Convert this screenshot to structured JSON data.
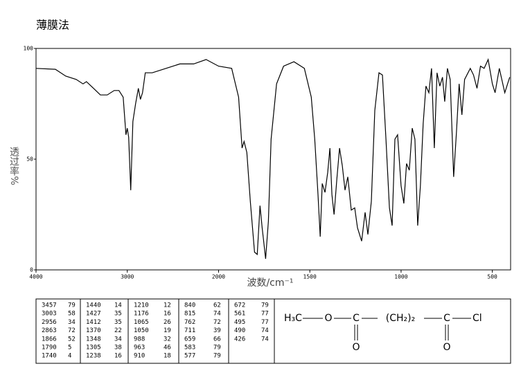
{
  "chart_data": {
    "type": "line",
    "title": "薄膜法",
    "x_label": "波数/cm⁻¹",
    "y_label": "透过率%",
    "xlim": [
      4000,
      400
    ],
    "xticks": [
      4000,
      3000,
      2000,
      1500,
      1000,
      500
    ],
    "ylim": [
      0,
      100
    ],
    "yticks": [
      0,
      50,
      100
    ],
    "color": "#000000",
    "x": [
      4000,
      3788,
      3674,
      3560,
      3485,
      3447,
      3371,
      3295,
      3220,
      3144,
      3091,
      3045,
      3015,
      3000,
      2985,
      2962,
      2939,
      2909,
      2879,
      2856,
      2833,
      2803,
      2727,
      2576,
      2424,
      2273,
      2136,
      2000,
      1928,
      1890,
      1871,
      1860,
      1845,
      1826,
      1803,
      1788,
      1773,
      1761,
      1742,
      1727,
      1712,
      1682,
      1644,
      1587,
      1530,
      1492,
      1473,
      1455,
      1443,
      1432,
      1417,
      1402,
      1390,
      1379,
      1367,
      1352,
      1337,
      1322,
      1307,
      1292,
      1273,
      1254,
      1239,
      1216,
      1197,
      1182,
      1163,
      1144,
      1121,
      1102,
      1083,
      1064,
      1049,
      1034,
      1019,
      1000,
      985,
      970,
      955,
      939,
      924,
      909,
      894,
      879,
      864,
      848,
      833,
      818,
      803,
      788,
      773,
      761,
      746,
      731,
      712,
      697,
      682,
      667,
      652,
      621,
      603,
      584,
      565,
      545,
      523,
      500,
      485,
      462,
      432,
      405
    ],
    "values": [
      91,
      90.6,
      87.5,
      86,
      84,
      85,
      82,
      79,
      79,
      81,
      81,
      78,
      61,
      64,
      60,
      36,
      67,
      75,
      82,
      77,
      80,
      89,
      89,
      91,
      93,
      93,
      95,
      92,
      91,
      78,
      55,
      58,
      53,
      31,
      8,
      7,
      29,
      19,
      5,
      22,
      59,
      84,
      92,
      94,
      91,
      78,
      59,
      34,
      15,
      39,
      35,
      44,
      55,
      34,
      25,
      41,
      55,
      47,
      36,
      42,
      27,
      28,
      19,
      13,
      26,
      16,
      31,
      72,
      89,
      88,
      59,
      28,
      20,
      59,
      61,
      38,
      30,
      48,
      45,
      64,
      59,
      20,
      38,
      66,
      83,
      80,
      91,
      55,
      89,
      83,
      87,
      76,
      91,
      86,
      42,
      62,
      84,
      70,
      86,
      91,
      88,
      82,
      92,
      91,
      95,
      84,
      80,
      91,
      80,
      87
    ],
    "peak_table": [
      [
        3457,
        79
      ],
      [
        3003,
        58
      ],
      [
        2956,
        34
      ],
      [
        2863,
        72
      ],
      [
        1866,
        52
      ],
      [
        1790,
        5
      ],
      [
        1740,
        4
      ],
      [
        1440,
        14
      ],
      [
        1427,
        35
      ],
      [
        1412,
        35
      ],
      [
        1370,
        22
      ],
      [
        1348,
        34
      ],
      [
        1305,
        38
      ],
      [
        1238,
        16
      ],
      [
        1210,
        12
      ],
      [
        1176,
        16
      ],
      [
        1065,
        26
      ],
      [
        1050,
        19
      ],
      [
        988,
        32
      ],
      [
        963,
        46
      ],
      [
        910,
        18
      ],
      [
        840,
        62
      ],
      [
        815,
        74
      ],
      [
        762,
        72
      ],
      [
        711,
        39
      ],
      [
        659,
        66
      ],
      [
        583,
        79
      ],
      [
        577,
        79
      ],
      [
        672,
        79
      ],
      [
        561,
        77
      ],
      [
        495,
        77
      ],
      [
        490,
        74
      ],
      [
        426,
        74
      ]
    ],
    "structure": [
      "H₃C",
      "O",
      "C",
      "(CH₂)₂",
      "C",
      "Cl",
      "O",
      "O"
    ]
  }
}
